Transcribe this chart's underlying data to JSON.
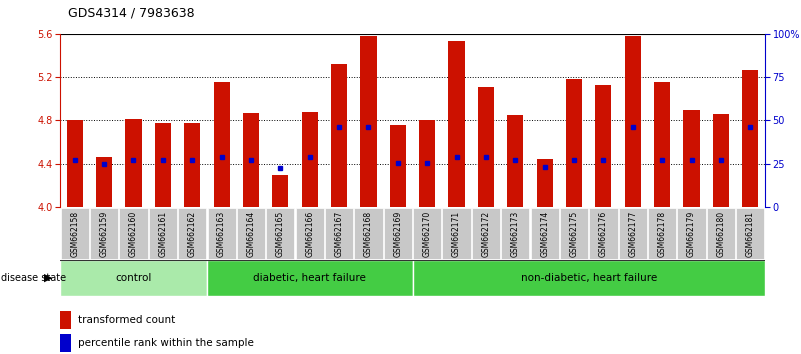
{
  "title": "GDS4314 / 7983638",
  "samples": [
    "GSM662158",
    "GSM662159",
    "GSM662160",
    "GSM662161",
    "GSM662162",
    "GSM662163",
    "GSM662164",
    "GSM662165",
    "GSM662166",
    "GSM662167",
    "GSM662168",
    "GSM662169",
    "GSM662170",
    "GSM662171",
    "GSM662172",
    "GSM662173",
    "GSM662174",
    "GSM662175",
    "GSM662176",
    "GSM662177",
    "GSM662178",
    "GSM662179",
    "GSM662180",
    "GSM662181"
  ],
  "bar_values": [
    4.8,
    4.46,
    4.81,
    4.78,
    4.78,
    5.15,
    4.87,
    4.3,
    4.88,
    5.32,
    5.58,
    4.76,
    4.8,
    5.53,
    5.11,
    4.85,
    4.44,
    5.18,
    5.13,
    5.58,
    5.15,
    4.9,
    4.86,
    5.26
  ],
  "blue_marker_values": [
    4.43,
    4.4,
    4.43,
    4.43,
    4.43,
    4.46,
    4.43,
    4.36,
    4.46,
    4.74,
    4.74,
    4.41,
    4.41,
    4.46,
    4.46,
    4.43,
    4.37,
    4.43,
    4.43,
    4.74,
    4.43,
    4.43,
    4.43,
    4.74
  ],
  "group_configs": [
    {
      "start": 0,
      "end": 5,
      "color": "#AAEAAA",
      "label": "control"
    },
    {
      "start": 5,
      "end": 12,
      "color": "#44CC44",
      "label": "diabetic, heart failure"
    },
    {
      "start": 12,
      "end": 24,
      "color": "#44CC44",
      "label": "non-diabetic, heart failure"
    }
  ],
  "ylim": [
    4.0,
    5.6
  ],
  "yticks_left": [
    4.0,
    4.4,
    4.8,
    5.2,
    5.6
  ],
  "yticks_right_pct": [
    0,
    25,
    50,
    75,
    100
  ],
  "ytick_labels_right": [
    "0",
    "25",
    "50",
    "75",
    "100%"
  ],
  "bar_color": "#CC1100",
  "blue_color": "#0000CC",
  "bar_width": 0.55,
  "title_fontsize": 9,
  "tick_fontsize": 7,
  "sample_fontsize": 5.5,
  "legend_fontsize": 7.5,
  "group_fontsize": 7.5
}
